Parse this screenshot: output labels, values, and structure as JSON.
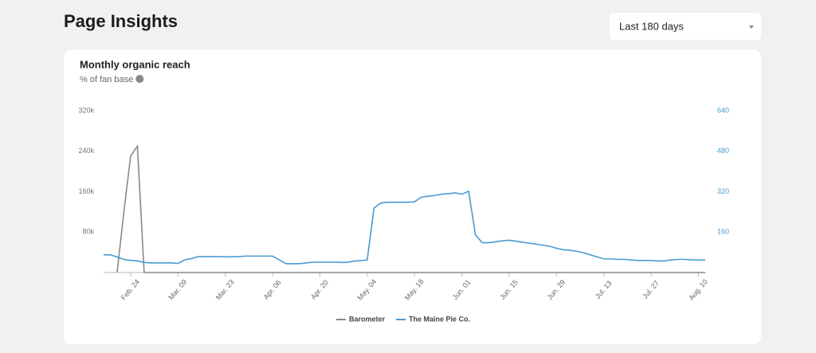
{
  "header": {
    "title": "Page Insights",
    "dropdown": "Last 180 days"
  },
  "chart_data": {
    "type": "line",
    "title": "Monthly organic reach",
    "subtitle": "% of fan base",
    "categories": [
      null,
      null,
      null,
      null,
      "Feb. 24",
      null,
      null,
      null,
      null,
      null,
      null,
      "Mar. 09",
      null,
      null,
      null,
      null,
      null,
      null,
      "Mar. 23",
      null,
      null,
      null,
      null,
      null,
      null,
      "Apr. 06",
      null,
      null,
      null,
      null,
      null,
      null,
      "Apr. 20",
      null,
      null,
      null,
      null,
      null,
      null,
      "May. 04",
      null,
      null,
      null,
      null,
      null,
      null,
      "May. 18",
      null,
      null,
      null,
      null,
      null,
      null,
      "Jun. 01",
      null,
      null,
      null,
      null,
      null,
      null,
      "Jun. 15",
      null,
      null,
      null,
      null,
      null,
      null,
      "Jun. 29",
      null,
      null,
      null,
      null,
      null,
      null,
      "Jul. 13",
      null,
      null,
      null,
      null,
      null,
      null,
      "Jul. 27",
      null,
      null,
      null,
      null,
      null,
      null,
      "Aug. 10",
      null
    ],
    "series": [
      {
        "name": "Barometer",
        "color": "#8a8a8a",
        "values": [
          null,
          null,
          0,
          120000,
          230000,
          250000,
          0,
          0,
          0,
          0,
          0,
          0,
          0,
          0,
          0,
          0,
          0,
          0,
          0,
          0,
          0,
          0,
          0,
          0,
          0,
          0,
          0,
          0,
          0,
          0,
          0,
          0,
          0,
          0,
          0,
          0,
          0,
          0,
          0,
          0,
          0,
          0,
          0,
          0,
          0,
          0,
          0,
          0,
          0,
          0,
          0,
          0,
          0,
          0,
          0,
          0,
          0,
          0,
          0,
          0,
          0,
          0,
          0,
          0,
          0,
          0,
          0,
          0,
          0,
          0,
          0,
          0,
          0,
          0,
          0,
          0,
          0,
          0,
          0,
          0,
          0,
          0,
          0,
          0,
          0,
          0,
          0,
          0,
          0,
          0
        ]
      },
      {
        "name": "The Maine Pie Co.",
        "color": "#4a9bd1",
        "axis": "y2",
        "values": [
          70,
          70,
          62,
          52,
          48,
          46,
          40,
          38,
          38,
          38,
          38,
          36,
          50,
          55,
          63,
          63,
          63,
          63,
          62,
          62,
          63,
          65,
          65,
          65,
          65,
          65,
          50,
          35,
          35,
          35,
          38,
          41,
          41,
          41,
          41,
          40,
          40,
          45,
          47,
          50,
          255,
          275,
          278,
          278,
          278,
          278,
          280,
          298,
          302,
          305,
          310,
          312,
          315,
          310,
          322,
          150,
          118,
          118,
          122,
          125,
          128,
          124,
          120,
          116,
          112,
          108,
          104,
          96,
          90,
          88,
          84,
          78,
          70,
          62,
          54,
          54,
          52,
          52,
          50,
          48,
          48,
          47,
          46,
          46,
          50,
          52,
          52,
          50,
          50,
          49
        ]
      }
    ],
    "ylim": [
      0,
      320000
    ],
    "yticks": [
      {
        "value": 80000,
        "label": "80k"
      },
      {
        "value": 160000,
        "label": "160k"
      },
      {
        "value": 240000,
        "label": "240k"
      },
      {
        "value": 320000,
        "label": "320k"
      }
    ],
    "y2lim": [
      0,
      640
    ],
    "y2ticks": [
      160,
      320,
      480,
      640
    ],
    "y2color": "#4a9bd1",
    "grid": false,
    "legend": "bottom"
  }
}
